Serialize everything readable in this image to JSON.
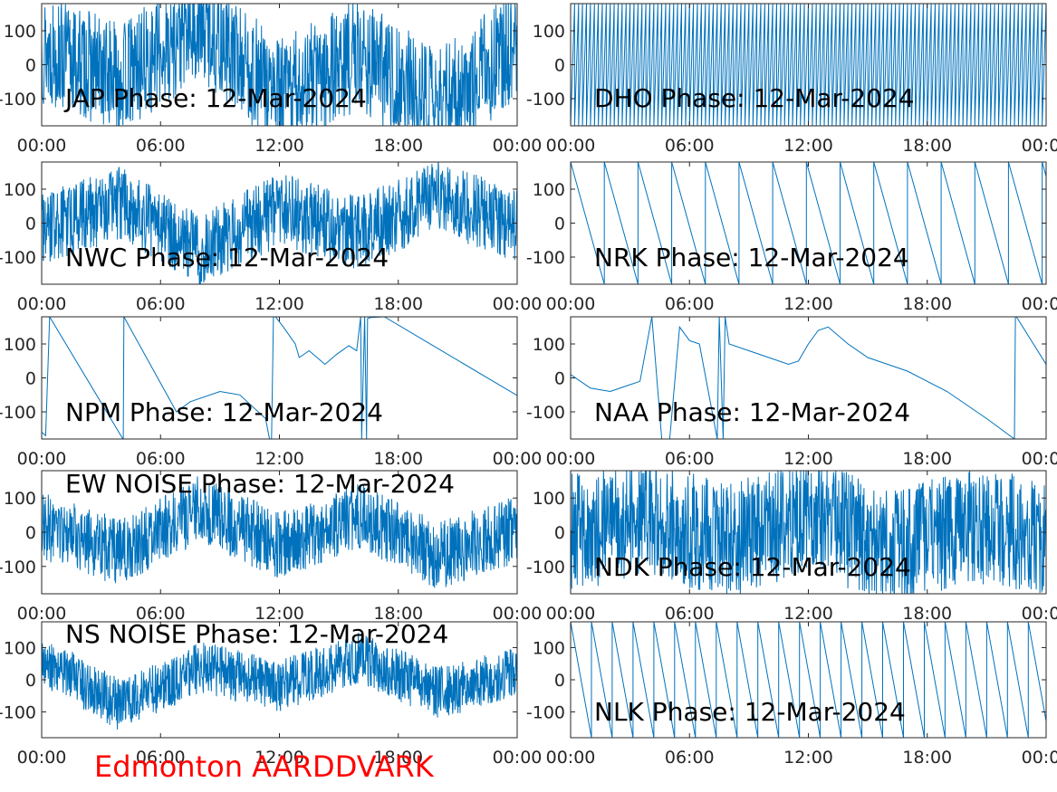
{
  "caption": "Edmonton AARDDVARK",
  "colors": {
    "series": "#0072BD",
    "axes": "#262626",
    "caption": "#FF0000"
  },
  "chart_data": [
    {
      "type": "line",
      "title": "JAP Phase: 12-Mar-2024",
      "x_ticks": [
        "00:00",
        "06:00",
        "12:00",
        "18:00",
        "00:00"
      ],
      "y_ticks": [
        "100",
        "0",
        "-100"
      ],
      "ylim": [
        -180,
        180
      ],
      "grid": false,
      "pattern": "noisy",
      "noise": 0.92,
      "series": [
        {
          "x_hours": [
            0,
            4,
            8,
            12,
            16,
            20,
            24
          ],
          "y_degrees": [
            50,
            -40,
            120,
            -90,
            30,
            -120,
            60
          ]
        }
      ]
    },
    {
      "type": "line",
      "title": "DHO Phase: 12-Mar-2024",
      "x_ticks": [
        "00:00",
        "06:00",
        "12:00",
        "18:00",
        "00:00"
      ],
      "y_ticks": [
        "100",
        "0",
        "-100"
      ],
      "ylim": [
        -180,
        180
      ],
      "grid": false,
      "pattern": "sawtooth",
      "period_hours": 0.2,
      "rising": true,
      "series": [
        {
          "x_hours": [
            0,
            24
          ],
          "y_degrees": [
            -180,
            180
          ]
        }
      ]
    },
    {
      "type": "line",
      "title": "NWC Phase: 12-Mar-2024",
      "x_ticks": [
        "00:00",
        "06:00",
        "12:00",
        "18:00",
        "00:00"
      ],
      "y_ticks": [
        "100",
        "0",
        "-100"
      ],
      "ylim": [
        -180,
        180
      ],
      "grid": false,
      "pattern": "noisy",
      "noise": 0.6,
      "series": [
        {
          "x_hours": [
            0,
            4,
            8,
            12,
            16,
            20,
            24
          ],
          "y_degrees": [
            -20,
            60,
            -80,
            40,
            -30,
            80,
            -10
          ]
        }
      ]
    },
    {
      "type": "line",
      "title": "NRK Phase: 12-Mar-2024",
      "x_ticks": [
        "00:00",
        "06:00",
        "12:00",
        "18:00",
        "00:00"
      ],
      "y_ticks": [
        "100",
        "0",
        "-100"
      ],
      "ylim": [
        -180,
        180
      ],
      "grid": false,
      "pattern": "sawtooth",
      "period_hours": 1.7,
      "rising": false,
      "series": [
        {
          "x_hours": [
            0,
            24
          ],
          "y_degrees": [
            180,
            -180
          ]
        }
      ]
    },
    {
      "type": "line",
      "title": "NPM Phase: 12-Mar-2024",
      "x_ticks": [
        "00:00",
        "06:00",
        "12:00",
        "18:00",
        "00:00"
      ],
      "y_ticks": [
        "100",
        "0",
        "-100"
      ],
      "ylim": [
        -180,
        180
      ],
      "grid": false,
      "pattern": "path",
      "series": [
        {
          "x_hours": [
            0,
            0.2,
            0.4,
            4.1,
            4.12,
            4.15,
            6.8,
            7.5,
            9,
            10,
            11.3,
            11.5,
            11.6,
            11.7,
            11.8,
            12.2,
            12.8,
            13,
            13.5,
            14.3,
            14.9,
            15.5,
            15.9,
            16.1,
            16.15,
            16.3,
            16.4,
            16.45,
            16.6,
            17.3,
            24
          ],
          "y_degrees": [
            -160,
            -170,
            180,
            -180,
            -180,
            180,
            -100,
            -70,
            -40,
            -50,
            -120,
            -180,
            -180,
            180,
            180,
            150,
            100,
            60,
            80,
            40,
            70,
            95,
            80,
            180,
            -180,
            180,
            -180,
            175,
            178,
            180,
            -52
          ]
        }
      ]
    },
    {
      "type": "line",
      "title": "NAA Phase: 12-Mar-2024",
      "x_ticks": [
        "00:00",
        "06:00",
        "12:00",
        "18:00",
        "00:00"
      ],
      "y_ticks": [
        "100",
        "0",
        "-100"
      ],
      "ylim": [
        -180,
        180
      ],
      "grid": false,
      "pattern": "path",
      "series": [
        {
          "x_hours": [
            0,
            1,
            2,
            3,
            3.5,
            4.1,
            4.6,
            5,
            5.5,
            6,
            6.5,
            7.4,
            7.5,
            7.7,
            7.8,
            8,
            9,
            10,
            11,
            11.5,
            12,
            12.5,
            13,
            14,
            15,
            16,
            17,
            19,
            21,
            22.4,
            22.45,
            22.5,
            24
          ],
          "y_degrees": [
            10,
            -30,
            -40,
            -20,
            -10,
            180,
            -180,
            -180,
            150,
            110,
            100,
            -180,
            180,
            -180,
            180,
            100,
            80,
            60,
            40,
            50,
            100,
            140,
            150,
            100,
            60,
            40,
            20,
            -40,
            -120,
            -180,
            180,
            180,
            40
          ]
        }
      ]
    },
    {
      "type": "line",
      "title": "EW NOISE Phase: 12-Mar-2024",
      "x_ticks": [
        "00:00",
        "06:00",
        "12:00",
        "18:00",
        "00:00"
      ],
      "y_ticks": [
        "100",
        "0",
        "-100"
      ],
      "ylim": [
        -180,
        180
      ],
      "grid": false,
      "pattern": "noisy",
      "noise": 0.55,
      "series": [
        {
          "x_hours": [
            0,
            4,
            8,
            12,
            16,
            20,
            24
          ],
          "y_degrees": [
            20,
            -60,
            70,
            -40,
            50,
            -70,
            10
          ]
        }
      ]
    },
    {
      "type": "line",
      "title": "NDK Phase: 12-Mar-2024",
      "x_ticks": [
        "00:00",
        "06:00",
        "12:00",
        "18:00",
        "00:00"
      ],
      "y_ticks": [
        "100",
        "0",
        "-100"
      ],
      "ylim": [
        -180,
        180
      ],
      "grid": false,
      "pattern": "noisy",
      "noise": 0.95,
      "series": [
        {
          "x_hours": [
            0,
            4,
            8,
            12,
            16,
            20,
            24
          ],
          "y_degrees": [
            0,
            40,
            -30,
            60,
            -50,
            20,
            -10
          ]
        }
      ]
    },
    {
      "type": "line",
      "title": "NS NOISE Phase: 12-Mar-2024",
      "x_ticks": [
        "00:00",
        "06:00",
        "12:00",
        "18:00",
        "00:00"
      ],
      "y_ticks": [
        "100",
        "0",
        "-100"
      ],
      "ylim": [
        -180,
        180
      ],
      "grid": false,
      "pattern": "noisy",
      "noise": 0.45,
      "series": [
        {
          "x_hours": [
            0,
            4,
            8,
            12,
            16,
            20,
            24
          ],
          "y_degrees": [
            60,
            -80,
            40,
            -20,
            70,
            -40,
            20
          ]
        }
      ]
    },
    {
      "type": "line",
      "title": "NLK Phase: 12-Mar-2024",
      "x_ticks": [
        "00:00",
        "06:00",
        "12:00",
        "18:00",
        "00:00"
      ],
      "y_ticks": [
        "100",
        "0",
        "-100"
      ],
      "ylim": [
        -180,
        180
      ],
      "grid": false,
      "pattern": "sawtooth",
      "period_hours": 1.05,
      "rising": false,
      "series": [
        {
          "x_hours": [
            0,
            24
          ],
          "y_degrees": [
            180,
            -180
          ]
        }
      ]
    }
  ]
}
